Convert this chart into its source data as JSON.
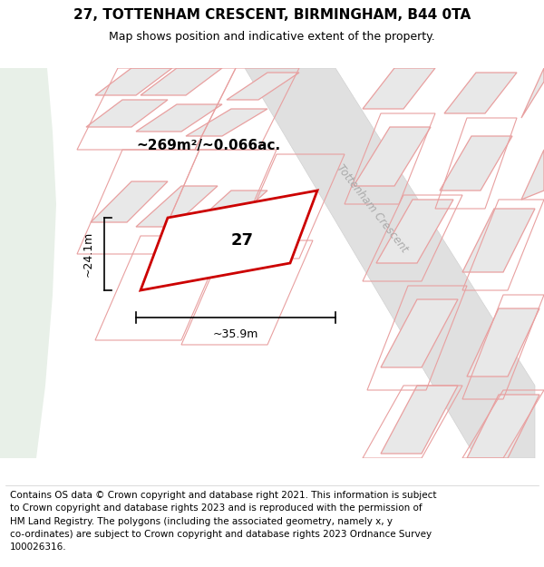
{
  "title": "27, TOTTENHAM CRESCENT, BIRMINGHAM, B44 0TA",
  "subtitle": "Map shows position and indicative extent of the property.",
  "footer": "Contains OS data © Crown copyright and database right 2021. This information is subject\nto Crown copyright and database rights 2023 and is reproduced with the permission of\nHM Land Registry. The polygons (including the associated geometry, namely x, y\nco-ordinates) are subject to Crown copyright and database rights 2023 Ordnance Survey\n100026316.",
  "map_bg": "#f2f2f2",
  "green_strip_color": "#e8f0e8",
  "road_color": "#e0e0e0",
  "building_outline_color": "#e8a0a0",
  "building_fill_color": "#e8e8e8",
  "highlight_color": "#cc0000",
  "highlight_fill": "#ffffff",
  "area_text": "~269m²/~0.066ac.",
  "number_label": "27",
  "width_label": "~35.9m",
  "height_label": "~24.1m",
  "road_label": "Tottenham Crescent",
  "title_fontsize": 11,
  "subtitle_fontsize": 9,
  "footer_fontsize": 7.5
}
